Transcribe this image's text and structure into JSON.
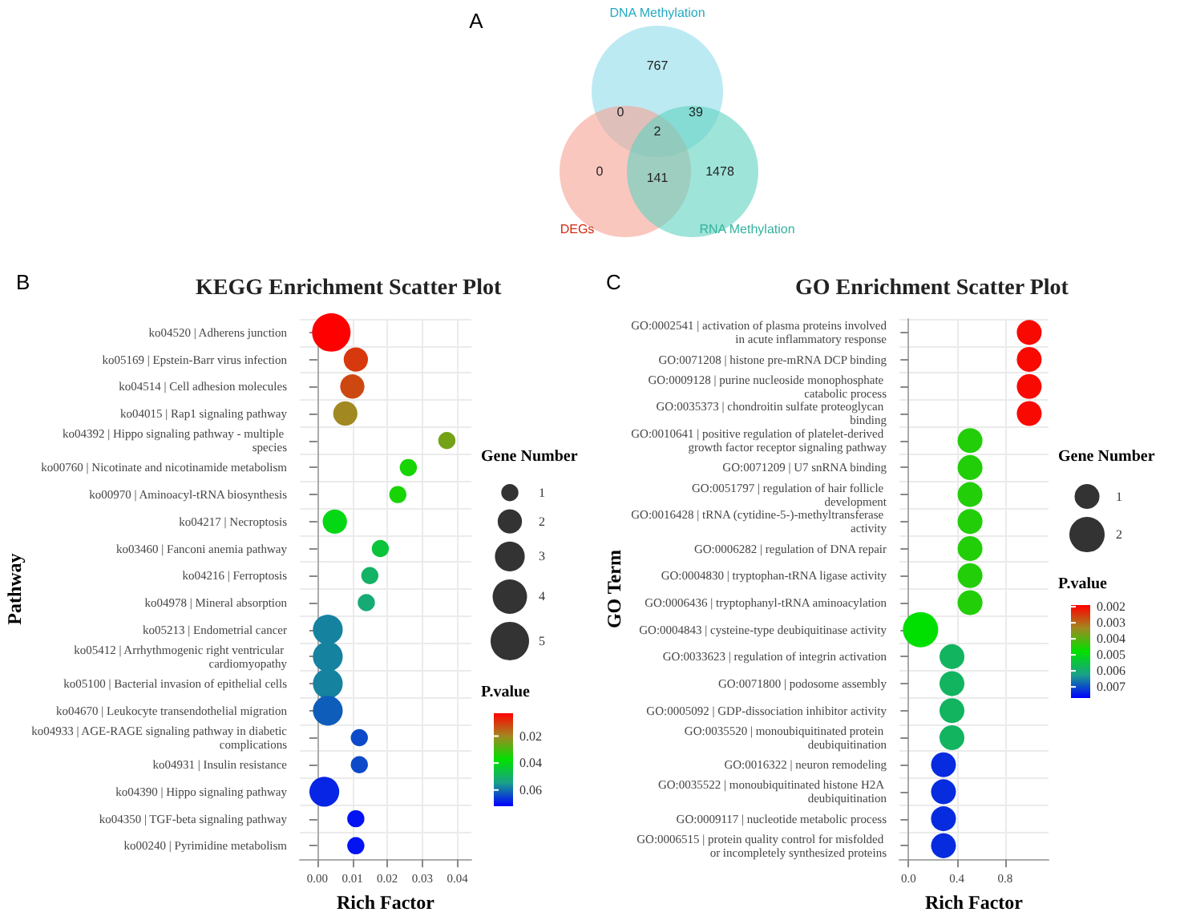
{
  "chart_data": [
    {
      "type": "other",
      "annotations": [
        "A",
        "767",
        "0",
        "39",
        "2",
        "0",
        "141",
        "1478"
      ],
      "categories": [
        "DNA Methylation",
        "DEGs",
        "RNA Methylation"
      ],
      "colors": [
        "#8fdcea",
        "#f7a195",
        "#5fd2c0"
      ]
    },
    {
      "type": "bubble",
      "orientation": "horizontal",
      "title": "KEGG Enrichment Scatter Plot",
      "xlabel": "Rich Factor",
      "ylabel": "Pathway",
      "legend_title": "Gene Number",
      "clabel": "P.value",
      "annotations": [
        "B"
      ],
      "grid": true,
      "categories": [
        "ko04520 | Adherens junction",
        "ko05169 | Epstein-Barr virus infection",
        "ko04514 | Cell adhesion molecules",
        "ko04015 | Rap1 signaling pathway",
        "ko04392 | Hippo signaling pathway - multiple species",
        "ko00760 | Nicotinate and nicotinamide metabolism",
        "ko00970 | Aminoacyl-tRNA biosynthesis",
        "ko04217 | Necroptosis",
        "ko03460 | Fanconi anemia pathway",
        "ko04216 | Ferroptosis",
        "ko04978 | Mineral absorption",
        "ko05213 | Endometrial cancer",
        "ko05412 | Arrhythmogenic right ventricular cardiomyopathy",
        "ko05100 | Bacterial invasion of epithelial cells",
        "ko04670 | Leukocyte transendothelial migration",
        "ko04933 | AGE-RAGE signaling pathway in diabetic complications",
        "ko04931 | Insulin resistance",
        "ko04390 | Hippo signaling pathway",
        "ko04350 | TGF-beta signaling pathway",
        "ko00240 | Pyrimidine metabolism"
      ],
      "values": [
        0.004,
        0.011,
        0.01,
        0.008,
        0.037,
        0.026,
        0.023,
        0.005,
        0.018,
        0.015,
        0.014,
        0.003,
        0.003,
        0.003,
        0.003,
        0.012,
        0.012,
        0.002,
        0.011,
        0.011
      ],
      "sizes": [
        5,
        2,
        2,
        2,
        1,
        1,
        1,
        2,
        1,
        1,
        1,
        3,
        3,
        3,
        3,
        1,
        1,
        3,
        1,
        1
      ],
      "size_legend": [
        1,
        2,
        3,
        4,
        5
      ],
      "cvalues": [
        0.003,
        0.01,
        0.012,
        0.02,
        0.025,
        0.035,
        0.035,
        0.04,
        0.045,
        0.05,
        0.052,
        0.058,
        0.058,
        0.058,
        0.062,
        0.064,
        0.064,
        0.068,
        0.07,
        0.07
      ],
      "clim": [
        0.003,
        0.072
      ],
      "cticks": [
        0.02,
        0.04,
        0.06
      ],
      "xlim": [
        -0.005,
        0.044
      ],
      "xticks": [
        {
          "value": 0,
          "label": "0.00"
        },
        {
          "value": 0.01,
          "label": "0.01"
        },
        {
          "value": 0.02,
          "label": "0.02"
        },
        {
          "value": 0.03,
          "label": "0.03"
        },
        {
          "value": 0.04,
          "label": "0.04"
        }
      ]
    },
    {
      "type": "bubble",
      "orientation": "horizontal",
      "title": "GO Enrichment Scatter Plot",
      "xlabel": "Rich Factor",
      "ylabel": "GO Term",
      "legend_title": "Gene Number",
      "clabel": "P.value",
      "annotations": [
        "C"
      ],
      "grid": true,
      "categories": [
        "GO:0002541 | activation of plasma proteins involved in acute inflammatory response",
        "GO:0071208 | histone pre-mRNA DCP binding",
        "GO:0009128 | purine nucleoside monophosphate catabolic process",
        "GO:0035373 | chondroitin sulfate proteoglycan binding",
        "GO:0010641 | positive regulation of platelet-derived growth factor receptor signaling pathway",
        "GO:0071209 | U7 snRNA binding",
        "GO:0051797 | regulation of hair follicle development",
        "GO:0016428 | tRNA (cytidine-5-)-methyltransferase activity",
        "GO:0006282 | regulation of DNA repair",
        "GO:0004830 | tryptophan-tRNA ligase activity",
        "GO:0006436 | tryptophanyl-tRNA aminoacylation",
        "GO:0004843 | cysteine-type deubiquitinase activity",
        "GO:0033623 | regulation of integrin activation",
        "GO:0071800 | podosome assembly",
        "GO:0005092 | GDP-dissociation inhibitor activity",
        "GO:0035520 | monoubiquitinated protein deubiquitination",
        "GO:0016322 | neuron remodeling",
        "GO:0035522 | monoubiquitinated histone H2A deubiquitination",
        "GO:0009117 | nucleotide metabolic process",
        "GO:0006515 | protein quality control for misfolded or incompletely synthesized proteins"
      ],
      "values": [
        1.0,
        1.0,
        1.0,
        1.0,
        0.51,
        0.51,
        0.51,
        0.51,
        0.51,
        0.51,
        0.51,
        0.1,
        0.36,
        0.36,
        0.36,
        0.36,
        0.29,
        0.29,
        0.29,
        0.29
      ],
      "sizes": [
        1,
        1,
        1,
        1,
        1,
        1,
        1,
        1,
        1,
        1,
        1,
        2,
        1,
        1,
        1,
        1,
        1,
        1,
        1,
        1
      ],
      "size_legend": [
        1,
        2
      ],
      "cvalues": [
        0.002,
        0.002,
        0.002,
        0.002,
        0.0045,
        0.0045,
        0.0045,
        0.0045,
        0.0045,
        0.0045,
        0.0045,
        0.0048,
        0.0058,
        0.0058,
        0.0058,
        0.0058,
        0.0073,
        0.0073,
        0.0073,
        0.0073
      ],
      "clim": [
        0.0019,
        0.0077
      ],
      "cticks": [
        0.002,
        0.003,
        0.004,
        0.005,
        0.006,
        0.007
      ],
      "xlim": [
        -0.075,
        1.16
      ],
      "xticks": [
        {
          "value": 0,
          "label": "0.0"
        },
        {
          "value": 0.4,
          "label": "0.4"
        },
        {
          "value": 0.8,
          "label": "0.8"
        }
      ]
    }
  ]
}
